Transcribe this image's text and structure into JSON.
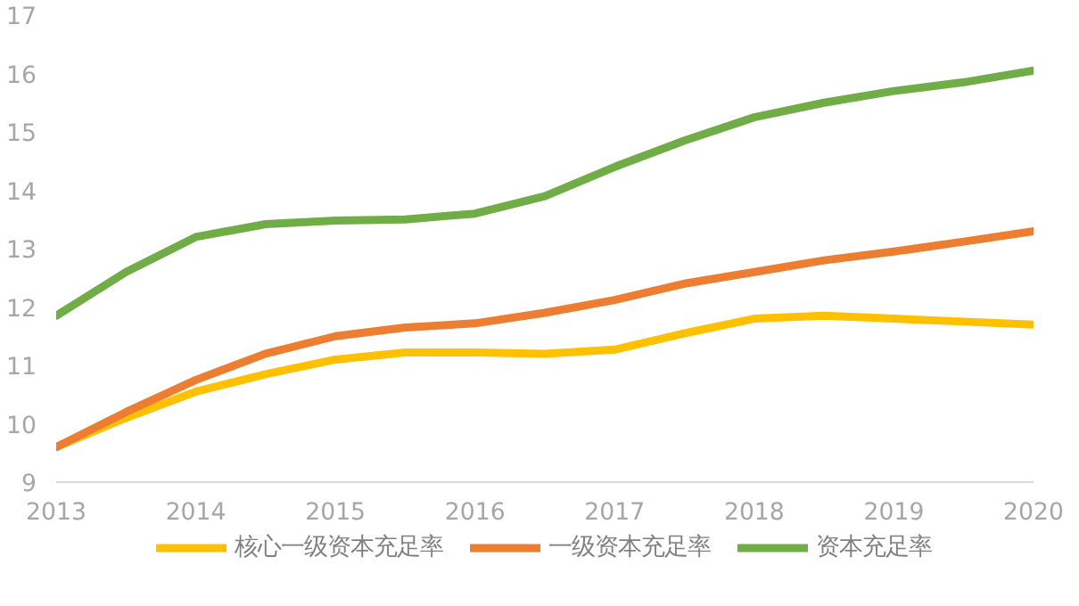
{
  "chart_data": {
    "type": "line",
    "x": [
      2013,
      2013.5,
      2014,
      2014.5,
      2015,
      2015.5,
      2016,
      2016.5,
      2017,
      2017.5,
      2018,
      2018.5,
      2019,
      2019.5,
      2020
    ],
    "series": [
      {
        "name": "核心一级资本充足率",
        "color": "#ffc000",
        "values": [
          9.6,
          10.1,
          10.55,
          10.85,
          11.1,
          11.22,
          11.22,
          11.2,
          11.27,
          11.55,
          11.8,
          11.85,
          11.8,
          11.75,
          11.7
        ]
      },
      {
        "name": "一级资本充足率",
        "color": "#ed7d31",
        "values": [
          9.6,
          10.2,
          10.75,
          11.2,
          11.5,
          11.65,
          11.72,
          11.9,
          12.12,
          12.4,
          12.6,
          12.8,
          12.95,
          13.12,
          13.3
        ]
      },
      {
        "name": "资本充足率",
        "color": "#70ad47",
        "values": [
          11.85,
          12.6,
          13.2,
          13.42,
          13.48,
          13.5,
          13.6,
          13.9,
          14.4,
          14.85,
          15.25,
          15.5,
          15.7,
          15.85,
          16.05
        ]
      }
    ],
    "xlim": [
      2013,
      2020
    ],
    "xticks": [
      2013,
      2014,
      2015,
      2016,
      2017,
      2018,
      2019,
      2020
    ],
    "ylim": [
      9,
      17
    ],
    "yticks": [
      9,
      10,
      11,
      12,
      13,
      14,
      15,
      16,
      17
    ],
    "grid": false,
    "legend": "bottom",
    "marker": "none",
    "line_style": "solid"
  }
}
